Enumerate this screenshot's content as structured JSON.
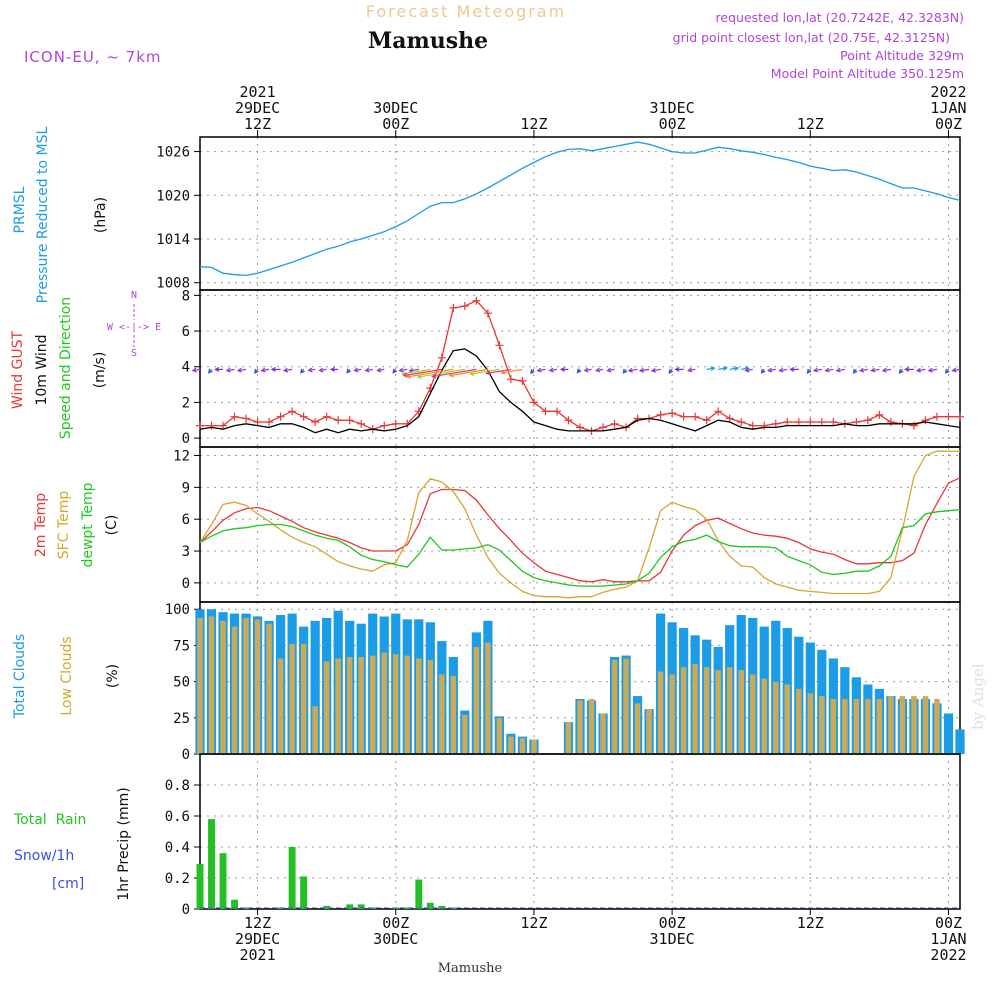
{
  "header": {
    "forecast_label": "Forecast Meteogram",
    "location": "Mamushe",
    "model": "ICON-EU, ~ 7km",
    "requested": "requested lon,lat (20.7242E, 42.3283N)",
    "grid_point": "grid point closest lon,lat (20.75E, 42.3125N)",
    "point_altitude": "Point Altitude 329m",
    "model_altitude": "Model Point Altitude 350.125m",
    "footer_location": "Mamushe",
    "watermark": "by Angel"
  },
  "time_axis": {
    "xlim": [
      0,
      66
    ],
    "ticks": [
      {
        "t": 5,
        "lines": [
          "2021",
          "29DEC",
          "12Z"
        ]
      },
      {
        "t": 17,
        "lines": [
          "30DEC",
          "00Z"
        ]
      },
      {
        "t": 29,
        "lines": [
          "12Z"
        ]
      },
      {
        "t": 41,
        "lines": [
          "31DEC",
          "00Z"
        ]
      },
      {
        "t": 53,
        "lines": [
          "12Z"
        ]
      },
      {
        "t": 65,
        "lines": [
          "2022",
          "1JAN",
          "00Z"
        ]
      }
    ],
    "bottom_ticks": [
      {
        "t": 5,
        "lines": [
          "12Z",
          "29DEC",
          "2021"
        ]
      },
      {
        "t": 17,
        "lines": [
          "00Z",
          "30DEC"
        ]
      },
      {
        "t": 29,
        "lines": [
          "12Z"
        ]
      },
      {
        "t": 41,
        "lines": [
          "00Z",
          "31DEC"
        ]
      },
      {
        "t": 53,
        "lines": [
          "12Z"
        ]
      },
      {
        "t": 65,
        "lines": [
          "00Z",
          "1JAN",
          "2022"
        ]
      }
    ]
  },
  "panel_labels": {
    "pressure": {
      "name": "PRMSL",
      "desc": "Pressure Reduced to MSL",
      "unit": "(hPa)"
    },
    "wind": {
      "gust": "Wind GUST",
      "wind10": "10m Wind",
      "speed_dir": "Speed and Direction",
      "unit": "(m/s)",
      "compass_n": "N",
      "compass_s": "S",
      "compass_row": "W <-|-> E"
    },
    "temp": {
      "t2m": "2m Temp",
      "sfc": "SFC Temp",
      "dew": "dewpt Temp",
      "unit": "(C)"
    },
    "clouds": {
      "total": "Total Clouds",
      "low": "Low Clouds",
      "unit": "(%)"
    },
    "precip": {
      "rain": "Total  Rain",
      "snow": "Snow/1h",
      "snow_unit": "[cm]",
      "ylabel": "1hr Precip (mm)"
    }
  },
  "colors": {
    "pressure": "#1a9ce6",
    "gust": "#e83838",
    "wind10": "#000000",
    "t2m": "#e83838",
    "sfc": "#d9a530",
    "dew": "#1ec81e",
    "total_cloud": "#1a9ce6",
    "low_cloud": "#c9aa5c",
    "rain": "#22c022",
    "snow": "#3b4fe0",
    "label_purple": "#b045d8",
    "label_blue": "#1a9ce6",
    "label_green": "#1ec81e",
    "label_red": "#e83838",
    "label_orange": "#d9a530",
    "forecast_title": "#f0c890"
  },
  "chart_data": [
    {
      "type": "line",
      "title": "",
      "ylabel": "Pressure Reduced to MSL (hPa)",
      "ylim": [
        1007,
        1028
      ],
      "yticks": [
        1008,
        1014,
        1020,
        1026
      ],
      "x": [
        0,
        1,
        2,
        3,
        4,
        5,
        6,
        7,
        8,
        9,
        10,
        11,
        12,
        13,
        14,
        15,
        16,
        17,
        18,
        19,
        20,
        21,
        22,
        23,
        24,
        25,
        26,
        27,
        28,
        29,
        30,
        31,
        32,
        33,
        34,
        35,
        36,
        37,
        38,
        39,
        40,
        41,
        42,
        43,
        44,
        45,
        46,
        47,
        48,
        49,
        50,
        51,
        52,
        53,
        54,
        55,
        56,
        57,
        58,
        59,
        60,
        61,
        62,
        63,
        64,
        65,
        66
      ],
      "series": [
        {
          "name": "PRMSL",
          "values": [
            1010.2,
            1010.1,
            1009.3,
            1009.1,
            1009.0,
            1009.3,
            1009.8,
            1010.3,
            1010.8,
            1011.4,
            1012.0,
            1012.6,
            1013.0,
            1013.6,
            1014.0,
            1014.5,
            1015.0,
            1015.7,
            1016.5,
            1017.5,
            1018.5,
            1019.0,
            1019.0,
            1019.5,
            1020.2,
            1021.0,
            1021.9,
            1022.8,
            1023.7,
            1024.5,
            1025.3,
            1025.9,
            1026.3,
            1026.4,
            1026.1,
            1026.4,
            1026.7,
            1027.0,
            1027.3,
            1027.0,
            1026.5,
            1026.0,
            1025.8,
            1025.8,
            1026.2,
            1026.6,
            1026.4,
            1026.1,
            1025.9,
            1025.6,
            1025.2,
            1024.9,
            1024.5,
            1024.0,
            1023.7,
            1023.4,
            1023.5,
            1023.2,
            1022.7,
            1022.2,
            1021.6,
            1021.0,
            1021.0,
            1020.6,
            1020.2,
            1019.7,
            1019.3
          ]
        }
      ]
    },
    {
      "type": "line",
      "title": "",
      "ylabel": "(m/s)",
      "ylim": [
        -0.5,
        8.3
      ],
      "yticks": [
        0,
        2,
        4,
        6,
        8
      ],
      "x": [
        0,
        1,
        2,
        3,
        4,
        5,
        6,
        7,
        8,
        9,
        10,
        11,
        12,
        13,
        14,
        15,
        16,
        17,
        18,
        19,
        20,
        21,
        22,
        23,
        24,
        25,
        26,
        27,
        28,
        29,
        30,
        31,
        32,
        33,
        34,
        35,
        36,
        37,
        38,
        39,
        40,
        41,
        42,
        43,
        44,
        45,
        46,
        47,
        48,
        49,
        50,
        51,
        52,
        53,
        54,
        55,
        56,
        57,
        58,
        59,
        60,
        61,
        62,
        63,
        64,
        65,
        66
      ],
      "series": [
        {
          "name": "Wind GUST",
          "values": [
            0.7,
            0.7,
            0.7,
            1.2,
            1.1,
            0.9,
            0.9,
            1.2,
            1.5,
            1.2,
            0.9,
            1.2,
            1.0,
            1.0,
            0.8,
            0.5,
            0.7,
            0.8,
            0.8,
            1.5,
            2.8,
            4.5,
            7.3,
            7.4,
            7.7,
            7.0,
            5.2,
            3.3,
            3.2,
            2.0,
            1.5,
            1.5,
            1.0,
            0.6,
            0.4,
            0.6,
            0.8,
            0.6,
            1.1,
            1.1,
            1.3,
            1.4,
            1.2,
            1.2,
            1.0,
            1.5,
            1.1,
            0.9,
            0.7,
            0.7,
            0.8,
            0.9,
            0.9,
            0.9,
            0.9,
            0.9,
            0.8,
            0.9,
            1.0,
            1.3,
            0.9,
            0.8,
            0.7,
            1.0,
            1.2,
            1.2,
            1.2
          ]
        },
        {
          "name": "10m Wind",
          "values": [
            0.5,
            0.6,
            0.5,
            0.7,
            0.8,
            0.7,
            0.6,
            0.8,
            0.8,
            0.6,
            0.3,
            0.5,
            0.3,
            0.5,
            0.4,
            0.5,
            0.4,
            0.5,
            0.7,
            1.2,
            2.5,
            3.8,
            4.9,
            5.0,
            4.6,
            3.8,
            2.6,
            2.0,
            1.5,
            0.9,
            0.7,
            0.5,
            0.4,
            0.4,
            0.4,
            0.4,
            0.5,
            0.6,
            1.0,
            1.1,
            1.0,
            0.8,
            0.6,
            0.4,
            0.7,
            1.0,
            0.9,
            0.6,
            0.5,
            0.6,
            0.6,
            0.7,
            0.7,
            0.7,
            0.7,
            0.7,
            0.8,
            0.7,
            0.7,
            0.8,
            0.8,
            0.8,
            0.8,
            0.9,
            0.8,
            0.7,
            0.6
          ]
        }
      ]
    },
    {
      "type": "line",
      "title": "",
      "ylabel": "(C)",
      "ylim": [
        -1.8,
        12.8
      ],
      "yticks": [
        0,
        3,
        6,
        9,
        12
      ],
      "x": [
        0,
        1,
        2,
        3,
        4,
        5,
        6,
        7,
        8,
        9,
        10,
        11,
        12,
        13,
        14,
        15,
        16,
        17,
        18,
        19,
        20,
        21,
        22,
        23,
        24,
        25,
        26,
        27,
        28,
        29,
        30,
        31,
        32,
        33,
        34,
        35,
        36,
        37,
        38,
        39,
        40,
        41,
        42,
        43,
        44,
        45,
        46,
        47,
        48,
        49,
        50,
        51,
        52,
        53,
        54,
        55,
        56,
        57,
        58,
        59,
        60,
        61,
        62,
        63,
        64,
        65,
        66
      ],
      "series": [
        {
          "name": "2m Temp",
          "values": [
            3.8,
            4.8,
            5.9,
            6.6,
            7.0,
            7.1,
            6.8,
            6.3,
            5.8,
            5.2,
            4.8,
            4.5,
            4.2,
            3.8,
            3.3,
            3.0,
            3.0,
            3.0,
            3.6,
            5.5,
            8.4,
            8.8,
            8.8,
            8.7,
            7.8,
            6.4,
            5.1,
            4.0,
            2.8,
            1.9,
            1.1,
            0.8,
            0.5,
            0.2,
            0.1,
            0.3,
            0.1,
            0.1,
            0.2,
            0.2,
            1.0,
            3.0,
            4.5,
            5.4,
            5.9,
            6.1,
            5.6,
            5.1,
            4.7,
            4.5,
            4.4,
            4.2,
            3.8,
            3.2,
            2.9,
            2.7,
            2.2,
            1.8,
            1.8,
            1.9,
            1.9,
            2.1,
            2.8,
            5.5,
            7.5,
            9.4,
            9.9
          ]
        },
        {
          "name": "SFC Temp",
          "values": [
            3.8,
            5.5,
            7.4,
            7.6,
            7.3,
            6.5,
            5.8,
            5.0,
            4.3,
            3.8,
            3.4,
            2.7,
            2.0,
            1.6,
            1.3,
            1.1,
            1.7,
            1.9,
            4.0,
            8.5,
            9.8,
            9.5,
            8.6,
            7.0,
            4.5,
            2.4,
            0.9,
            0.0,
            -0.8,
            -1.2,
            -1.3,
            -1.3,
            -1.4,
            -1.3,
            -1.3,
            -0.9,
            -0.6,
            -0.4,
            0.2,
            3.3,
            6.8,
            7.6,
            7.2,
            6.9,
            6.0,
            4.0,
            2.5,
            1.6,
            1.5,
            0.5,
            -0.1,
            -0.4,
            -0.7,
            -0.8,
            -0.9,
            -1.0,
            -1.0,
            -1.0,
            -1.0,
            -0.8,
            0.5,
            5.0,
            10.0,
            12.0,
            12.4,
            12.4,
            12.4
          ]
        },
        {
          "name": "dewpt Temp",
          "values": [
            3.8,
            4.4,
            4.9,
            5.1,
            5.2,
            5.4,
            5.5,
            5.5,
            5.3,
            4.9,
            4.5,
            4.2,
            4.0,
            3.4,
            2.6,
            2.2,
            2.0,
            1.7,
            1.5,
            2.7,
            4.3,
            3.1,
            3.1,
            3.2,
            3.3,
            3.6,
            3.1,
            2.1,
            1.1,
            0.5,
            0.2,
            0.0,
            -0.2,
            -0.3,
            -0.3,
            -0.3,
            -0.2,
            -0.1,
            0.2,
            0.9,
            2.4,
            3.4,
            3.9,
            4.1,
            4.5,
            3.9,
            3.5,
            3.4,
            3.4,
            3.4,
            3.3,
            2.5,
            2.1,
            1.7,
            1.0,
            0.8,
            0.9,
            1.1,
            1.1,
            1.6,
            2.5,
            5.2,
            5.4,
            6.5,
            6.7,
            6.8,
            6.9
          ]
        }
      ]
    },
    {
      "type": "bar",
      "title": "",
      "ylabel": "(%)",
      "ylim": [
        0,
        105
      ],
      "yticks": [
        0,
        25,
        50,
        75,
        100
      ],
      "x": [
        0,
        1,
        2,
        3,
        4,
        5,
        6,
        7,
        8,
        9,
        10,
        11,
        12,
        13,
        14,
        15,
        16,
        17,
        18,
        19,
        20,
        21,
        22,
        23,
        24,
        25,
        26,
        27,
        28,
        29,
        30,
        31,
        32,
        33,
        34,
        35,
        36,
        37,
        38,
        39,
        40,
        41,
        42,
        43,
        44,
        45,
        46,
        47,
        48,
        49,
        50,
        51,
        52,
        53,
        54,
        55,
        56,
        57,
        58,
        59,
        60,
        61,
        62,
        63,
        64,
        65,
        66
      ],
      "series": [
        {
          "name": "Total Clouds",
          "values": [
            100,
            100,
            98,
            97,
            97,
            95,
            92,
            96,
            97,
            88,
            92,
            94,
            99,
            92,
            90,
            97,
            95,
            97,
            93,
            93,
            91,
            78,
            67,
            30,
            84,
            92,
            26,
            14,
            12,
            10,
            0,
            0,
            22,
            38,
            37,
            28,
            67,
            68,
            40,
            31,
            97,
            91,
            87,
            82,
            79,
            74,
            89,
            96,
            94,
            88,
            92,
            87,
            81,
            77,
            72,
            66,
            60,
            53,
            48,
            45,
            40,
            38,
            38,
            38,
            35,
            28,
            17
          ]
        },
        {
          "name": "Low Clouds",
          "values": [
            94,
            95,
            92,
            88,
            94,
            93,
            90,
            66,
            76,
            76,
            33,
            64,
            66,
            67,
            67,
            68,
            70,
            69,
            68,
            66,
            65,
            55,
            54,
            27,
            74,
            77,
            25,
            12,
            11,
            10,
            0,
            0,
            22,
            37,
            38,
            28,
            65,
            66,
            35,
            31,
            57,
            55,
            60,
            62,
            60,
            58,
            60,
            58,
            55,
            52,
            50,
            48,
            45,
            42,
            40,
            38,
            38,
            38,
            38,
            38,
            40,
            40,
            40,
            40,
            38,
            0,
            0
          ]
        }
      ]
    },
    {
      "type": "bar",
      "title": "",
      "ylabel": "1hr Precip (mm)",
      "ylim": [
        0,
        1.0
      ],
      "yticks": [
        0,
        0.2,
        0.4,
        0.6,
        0.8
      ],
      "x": [
        0,
        1,
        2,
        3,
        4,
        5,
        6,
        7,
        8,
        9,
        10,
        11,
        12,
        13,
        14,
        15,
        16,
        17,
        18,
        19,
        20,
        21,
        22,
        23,
        24,
        25,
        26,
        27,
        28,
        29,
        30,
        31,
        32,
        33,
        34,
        35,
        36,
        37,
        38,
        39,
        40,
        41,
        42,
        43,
        44,
        45,
        46,
        47,
        48,
        49,
        50,
        51,
        52,
        53,
        54,
        55,
        56,
        57,
        58,
        59,
        60,
        61,
        62,
        63,
        64,
        65,
        66
      ],
      "series": [
        {
          "name": "Total Rain",
          "values": [
            0.29,
            0.58,
            0.36,
            0.06,
            0.01,
            0,
            0,
            0.01,
            0.4,
            0.21,
            0,
            0.02,
            0,
            0.03,
            0.03,
            0.01,
            0,
            0.01,
            0.01,
            0.19,
            0.04,
            0.02,
            0.01,
            0,
            0,
            0,
            0,
            0,
            0,
            0,
            0,
            0,
            0,
            0,
            0,
            0,
            0,
            0,
            0,
            0,
            0,
            0,
            0,
            0,
            0,
            0,
            0,
            0,
            0,
            0,
            0,
            0,
            0,
            0,
            0,
            0,
            0,
            0,
            0,
            0,
            0,
            0,
            0,
            0,
            0,
            0,
            0
          ]
        }
      ]
    }
  ]
}
